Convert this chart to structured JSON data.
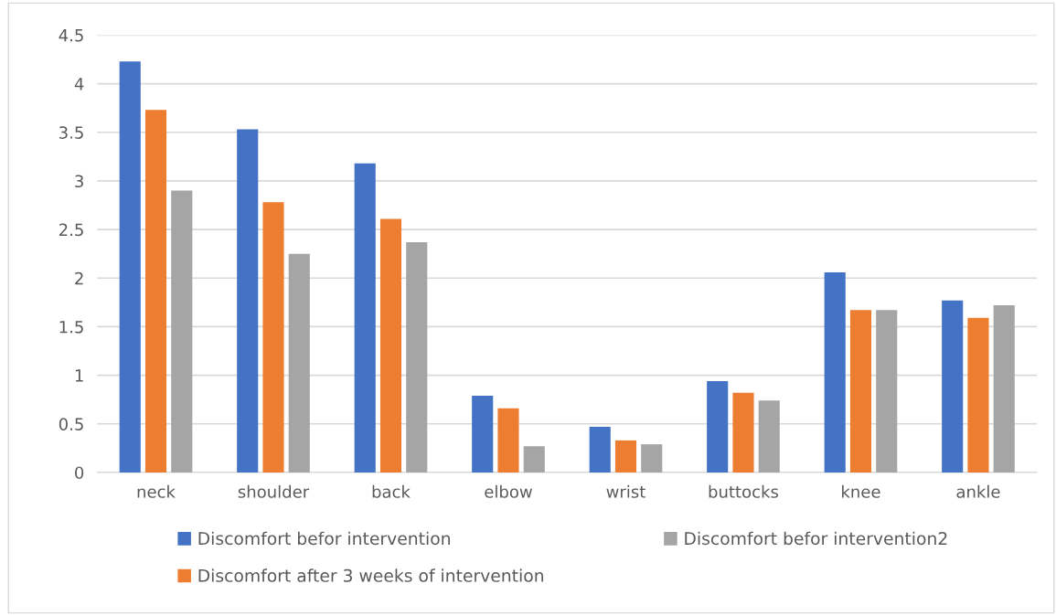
{
  "chart_data": {
    "type": "bar",
    "categories": [
      "neck",
      "shoulder",
      "back",
      "elbow",
      "wrist",
      "buttocks",
      "knee",
      "ankle"
    ],
    "series": [
      {
        "name": "Discomfort befor intervention",
        "color": "#4472c4",
        "values": [
          4.23,
          3.53,
          3.18,
          0.79,
          0.47,
          0.94,
          2.06,
          1.77
        ]
      },
      {
        "name": "Discomfort after 3 weeks of intervention",
        "color": "#ed7d31",
        "values": [
          3.73,
          2.78,
          2.61,
          0.66,
          0.33,
          0.82,
          1.67,
          1.59
        ]
      },
      {
        "name": "Discomfort befor intervention2",
        "color": "#a5a5a5",
        "values": [
          2.9,
          2.25,
          2.37,
          0.27,
          0.29,
          0.74,
          1.67,
          1.72
        ]
      }
    ],
    "ylim": [
      0,
      4.5
    ],
    "yticks": [
      0,
      0.5,
      1,
      1.5,
      2,
      2.5,
      3,
      3.5,
      4,
      4.5
    ],
    "grid": "y",
    "legend": "bottom"
  }
}
